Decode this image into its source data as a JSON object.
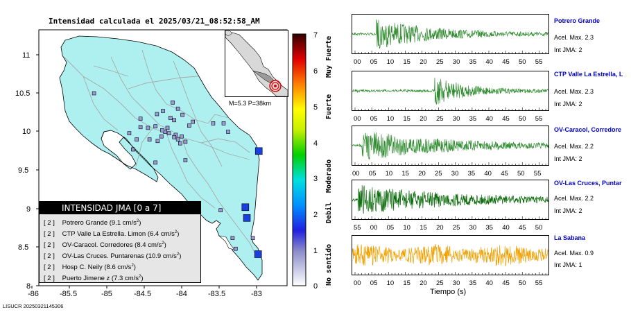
{
  "map": {
    "title": "Intensidad calculada el 2025/03/21_08:52:58_AM",
    "x_ticks": [
      "-86",
      "-85.5",
      "-85",
      "-84.5",
      "-84",
      "-83.5",
      "-83"
    ],
    "y_ticks": [
      "11",
      "10.5",
      "10",
      "9.5",
      "9",
      "8.5",
      "8"
    ],
    "inset_label": "M=5.3 P=38km",
    "footer": "LISUCR 20250321145306"
  },
  "scale": {
    "ticks": [
      "0",
      "1",
      "2",
      "3",
      "4",
      "5",
      "6",
      "7"
    ],
    "categories": [
      "No sentido",
      "Debil",
      "Moderado",
      "Fuerte",
      "Muy Fuerte"
    ]
  },
  "legend": {
    "title": "INTENSIDAD JMA [0 a 7]",
    "unit_base": "cm/s",
    "unit_exp": "2",
    "rows": [
      {
        "level": "[ 2 ]",
        "text": "Potrero Grande (9.1",
        "value": ")"
      },
      {
        "level": "[ 2 ]",
        "text": "CTP Valle La Estrella. Limon (6.4",
        "value": ")"
      },
      {
        "level": "[ 2 ]",
        "text": "OV-Caracol. Corredores (8.4",
        "value": ")"
      },
      {
        "level": "[ 2 ]",
        "text": "OV-Las Cruces. Puntarenas (10.9",
        "value": ")"
      },
      {
        "level": "[ 2 ]",
        "text": "Hosp C. Neily (8.6",
        "value": ")"
      },
      {
        "level": "[ 2 ]",
        "text": "Puerto Jimene z (7.3",
        "value": ")"
      }
    ]
  },
  "traces": [
    {
      "name": "Potrero Grande",
      "acel": "Acel. Max. 2.3",
      "jma": "Int JMA: 2",
      "color": "#2e8b2e",
      "ticks": [
        "00",
        "05",
        "10",
        "15",
        "20",
        "25",
        "30",
        "35",
        "40",
        "45",
        "50",
        "55"
      ]
    },
    {
      "name": "CTP Valle La Estrella, L",
      "acel": "Acel. Max. 2.3",
      "jma": "Int JMA: 2",
      "color": "#2e8b2e",
      "ticks": [
        "00",
        "05",
        "10",
        "15",
        "20",
        "25",
        "30",
        "35",
        "40",
        "45",
        "50",
        "55"
      ]
    },
    {
      "name": "OV-Caracol, Corredore",
      "acel": "Acel. Max. 2.2",
      "jma": "Int JMA: 2",
      "color": "#2e8b2e",
      "ticks": [
        "00",
        "05",
        "10",
        "15",
        "20",
        "25",
        "30",
        "35",
        "40",
        "45",
        "50",
        "55"
      ]
    },
    {
      "name": "OV-Las Cruces, Puntar",
      "acel": "Acel. Max. 2.2",
      "jma": "Int JMA: 2",
      "color": "#0a6b0a",
      "ticks": [
        "55",
        "00",
        "05",
        "10",
        "15",
        "20",
        "25",
        "30",
        "35",
        "40",
        "45",
        "50"
      ]
    },
    {
      "name": "La Sabana",
      "acel": "Acel. Max. 0.9",
      "jma": "Int JMA: 1",
      "color": "#f0a000",
      "ticks": [
        "00",
        "05",
        "10",
        "15",
        "20",
        "25",
        "30",
        "35",
        "40",
        "45",
        "50",
        "55"
      ]
    }
  ],
  "xaxis_label": "Tiempo (s)",
  "chart_data": [
    {
      "type": "scatter",
      "title": "Intensidad calculada el 2025/03/21_08:52:58_AM",
      "xlim": [
        -86.1,
        -82.6
      ],
      "ylim": [
        8,
        11.25
      ],
      "grid": false,
      "points_description": "station intensity markers",
      "stations": [
        {
          "lon": -82.97,
          "lat": 9.75,
          "jma": 2
        },
        {
          "lon": -83.15,
          "lat": 9.02,
          "jma": 2
        },
        {
          "lon": -83.13,
          "lat": 8.88,
          "jma": 2
        },
        {
          "lon": -82.98,
          "lat": 8.41,
          "jma": 2
        },
        {
          "lon": -83.48,
          "lat": 8.98,
          "jma": 1
        },
        {
          "lon": -83.32,
          "lat": 8.62,
          "jma": 1
        },
        {
          "lon": -83.05,
          "lat": 8.62,
          "jma": 1
        },
        {
          "lon": -83.28,
          "lat": 8.48,
          "jma": 1
        },
        {
          "lon": -83.95,
          "lat": 9.63,
          "jma": 1
        },
        {
          "lon": -83.95,
          "lat": 9.87,
          "jma": 1
        },
        {
          "lon": -84.08,
          "lat": 9.96,
          "jma": 1
        },
        {
          "lon": -84.1,
          "lat": 9.93,
          "jma": 1
        },
        {
          "lon": -84.05,
          "lat": 9.9,
          "jma": 1
        },
        {
          "lon": -84.0,
          "lat": 9.94,
          "jma": 1
        },
        {
          "lon": -83.9,
          "lat": 10.08,
          "jma": 1
        },
        {
          "lon": -83.85,
          "lat": 10.13,
          "jma": 1
        },
        {
          "lon": -83.58,
          "lat": 10.11,
          "jma": 1
        },
        {
          "lon": -83.44,
          "lat": 10.11,
          "jma": 1
        },
        {
          "lon": -83.38,
          "lat": 10.0,
          "jma": 1
        },
        {
          "lon": -84.17,
          "lat": 9.98,
          "jma": 1
        },
        {
          "lon": -84.22,
          "lat": 10.0,
          "jma": 1
        },
        {
          "lon": -84.26,
          "lat": 10.02,
          "jma": 1
        },
        {
          "lon": -84.19,
          "lat": 10.05,
          "jma": 1
        },
        {
          "lon": -84.35,
          "lat": 10.07,
          "jma": 1
        },
        {
          "lon": -84.45,
          "lat": 10.05,
          "jma": 1
        },
        {
          "lon": -84.55,
          "lat": 10.06,
          "jma": 1
        },
        {
          "lon": -84.6,
          "lat": 9.9,
          "jma": 1
        },
        {
          "lon": -84.7,
          "lat": 9.98,
          "jma": 1
        },
        {
          "lon": -84.43,
          "lat": 9.9,
          "jma": 1
        },
        {
          "lon": -84.12,
          "lat": 10.38,
          "jma": 1
        },
        {
          "lon": -84.1,
          "lat": 10.15,
          "jma": 1
        },
        {
          "lon": -84.33,
          "lat": 10.23,
          "jma": 1
        },
        {
          "lon": -84.25,
          "lat": 10.27,
          "jma": 1
        },
        {
          "lon": -84.05,
          "lat": 10.3,
          "jma": 1
        },
        {
          "lon": -84.15,
          "lat": 10.18,
          "jma": 1
        },
        {
          "lon": -83.99,
          "lat": 10.22,
          "jma": 1
        },
        {
          "lon": -84.02,
          "lat": 9.85,
          "jma": 1
        },
        {
          "lon": -84.55,
          "lat": 10.17,
          "jma": 1
        },
        {
          "lon": -84.65,
          "lat": 9.77,
          "jma": 1
        },
        {
          "lon": -85.17,
          "lat": 10.5,
          "jma": 1
        },
        {
          "lon": -84.35,
          "lat": 9.6,
          "jma": 1
        },
        {
          "lon": -84.32,
          "lat": 9.88,
          "jma": 1
        },
        {
          "lon": -84.27,
          "lat": 9.94,
          "jma": 1
        }
      ]
    },
    {
      "type": "line",
      "series": [
        {
          "name": "Potrero Grande",
          "peak_acel": 2.3,
          "jma": 2
        },
        {
          "name": "CTP Valle La Estrella, L",
          "peak_acel": 2.3,
          "jma": 2
        },
        {
          "name": "OV-Caracol, Corredore",
          "peak_acel": 2.2,
          "jma": 2
        },
        {
          "name": "OV-Las Cruces, Puntar",
          "peak_acel": 2.2,
          "jma": 2
        },
        {
          "name": "La Sabana",
          "peak_acel": 0.9,
          "jma": 1
        }
      ],
      "xlabel": "Tiempo (s)",
      "xlim": [
        0,
        57
      ]
    }
  ]
}
